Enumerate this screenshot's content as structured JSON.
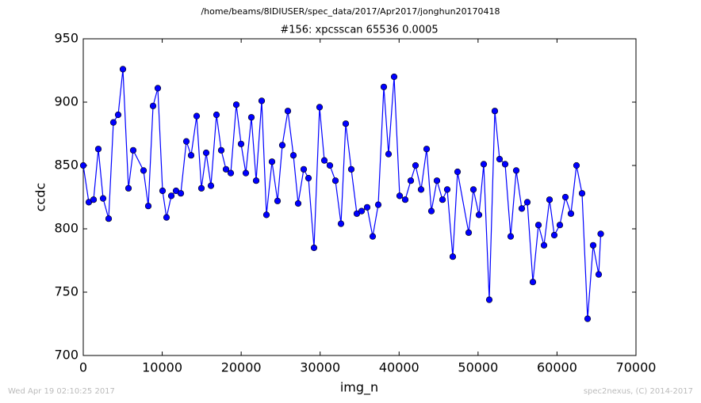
{
  "chart_data": {
    "type": "line",
    "suptitle": "/home/beams/8IDIUSER/spec_data/2017/Apr2017/jonghun20170418",
    "title": "#156: xpcsscan 65536 0.0005",
    "xlabel": "img_n",
    "ylabel": "ccdc",
    "timestamp": "Wed Apr 19 02:10:25 2017",
    "credit": "spec2nexus, (C) 2014-2017",
    "xlim": [
      0,
      70000
    ],
    "xticks": [
      0,
      10000,
      20000,
      30000,
      40000,
      50000,
      60000,
      70000
    ],
    "ylim": [
      700,
      950
    ],
    "yticks": [
      700,
      750,
      800,
      850,
      900,
      950
    ],
    "grid": false,
    "x": [
      0,
      703,
      1306,
      1908,
      2511,
      3214,
      3816,
      4419,
      5022,
      5725,
      6327,
      7633,
      8235,
      8838,
      9440,
      10043,
      10545,
      11148,
      11750,
      12353,
      13056,
      13658,
      14361,
      14964,
      15567,
      16169,
      16872,
      17475,
      18077,
      18680,
      19383,
      19986,
      20588,
      21291,
      21894,
      22597,
      23199,
      23902,
      24605,
      25208,
      25911,
      26614,
      27216,
      27919,
      28522,
      29225,
      29928,
      30531,
      31234,
      31937,
      32640,
      33242,
      33945,
      34648,
      35251,
      35954,
      36657,
      37360,
      38063,
      38665,
      39368,
      40072,
      40775,
      41478,
      42080,
      42783,
      43486,
      44089,
      44792,
      45495,
      46097,
      46800,
      47403,
      48809,
      49412,
      50115,
      50717,
      51420,
      52123,
      52726,
      53429,
      54132,
      54835,
      55538,
      56241,
      56944,
      57647,
      58350,
      59053,
      59655,
      60358,
      61061,
      61764,
      62467,
      63170,
      63873,
      64576,
      65280,
      65536
    ],
    "series": [
      {
        "color": "#0000ff",
        "values": [
          850,
          821,
          823,
          863,
          824,
          808,
          884,
          890,
          926,
          832,
          862,
          846,
          818,
          897,
          911,
          830,
          809,
          826,
          830,
          828,
          869,
          858,
          889,
          832,
          860,
          834,
          890,
          862,
          847,
          844,
          898,
          867,
          844,
          888,
          838,
          901,
          811,
          853,
          822,
          866,
          893,
          858,
          820,
          847,
          840,
          785,
          896,
          854,
          850,
          838,
          804,
          883,
          847,
          812,
          814,
          817,
          794,
          819,
          912,
          859,
          920,
          826,
          823,
          838,
          850,
          831,
          863,
          814,
          838,
          823,
          831,
          778,
          845,
          797,
          831,
          811,
          851,
          744,
          893,
          855,
          851,
          794,
          846,
          816,
          821,
          758,
          803,
          787,
          823,
          795,
          803,
          825,
          812,
          850,
          828,
          729,
          787,
          764,
          796
        ]
      }
    ]
  }
}
